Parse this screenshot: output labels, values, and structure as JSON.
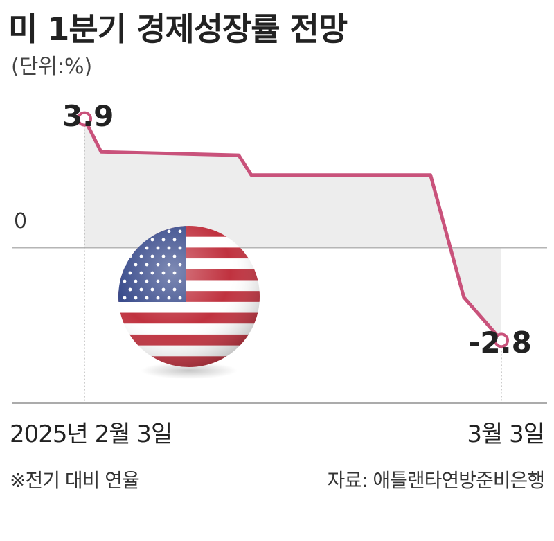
{
  "colors": {
    "line": "#c9527b",
    "area": "#ededed",
    "axis": "#8f8f8f",
    "zero_line": "#b5b5b5",
    "text": "#222222",
    "flag_red": "#c0323f",
    "flag_blue": "#3a4c8c"
  },
  "chart_data": {
    "type": "line",
    "title": "미 1분기 경제성장률 전망",
    "unit_label": "(단위:%)",
    "ylim": [
      -4.7,
      5.4
    ],
    "grid": false,
    "legend": "none",
    "series": [
      {
        "x_fraction": [
          0.0,
          0.04,
          0.37,
          0.4,
          0.83,
          0.91,
          1.0
        ],
        "values": [
          3.9,
          2.9,
          2.8,
          2.2,
          2.2,
          -1.5,
          -2.8
        ]
      }
    ],
    "y_reference": "0",
    "first_label": "3.9",
    "last_label": "-2.8",
    "x_start_label": "2025년 2월 3일",
    "x_end_label": "3월 3일"
  },
  "footnote_left": "※전기 대비 연율",
  "footnote_right": "자료: 애틀랜타연방준비은행",
  "icon": "us-flag-ball-icon"
}
